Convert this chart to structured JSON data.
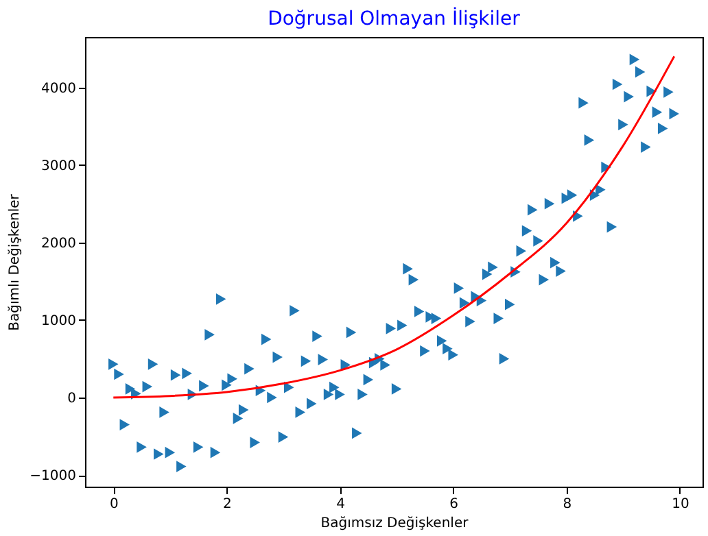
{
  "chart_data": {
    "type": "scatter",
    "title": "Doğrusal Olmayan İlişkiler",
    "xlabel": "Bağımsız Değişkenler",
    "ylabel": "Bağımlı Değişkenler",
    "xlim": [
      -0.5,
      10.4
    ],
    "ylim": [
      -1150,
      4650
    ],
    "xticks": [
      0,
      2,
      4,
      6,
      8,
      10
    ],
    "yticks": [
      -1000,
      0,
      1000,
      2000,
      3000,
      4000
    ],
    "grid": false,
    "series": [
      {
        "color": "#1f77b4",
        "marker": "triangle",
        "x": [
          0,
          0.1,
          0.2,
          0.3,
          0.4,
          0.5,
          0.6,
          0.7,
          0.8,
          0.9,
          1.0,
          1.1,
          1.2,
          1.3,
          1.4,
          1.5,
          1.6,
          1.7,
          1.8,
          1.9,
          2.0,
          2.1,
          2.2,
          2.3,
          2.4,
          2.5,
          2.6,
          2.7,
          2.8,
          2.9,
          3.0,
          3.1,
          3.2,
          3.3,
          3.4,
          3.5,
          3.6,
          3.7,
          3.8,
          3.9,
          4.0,
          4.1,
          4.2,
          4.3,
          4.4,
          4.5,
          4.6,
          4.7,
          4.8,
          4.9,
          5.0,
          5.1,
          5.2,
          5.3,
          5.4,
          5.5,
          5.6,
          5.7,
          5.8,
          5.9,
          6.0,
          6.1,
          6.2,
          6.3,
          6.4,
          6.5,
          6.6,
          6.7,
          6.8,
          6.9,
          7.0,
          7.1,
          7.2,
          7.3,
          7.4,
          7.5,
          7.6,
          7.7,
          7.8,
          7.9,
          8.0,
          8.1,
          8.2,
          8.3,
          8.4,
          8.5,
          8.6,
          8.7,
          8.8,
          8.9,
          9.0,
          9.1,
          9.2,
          9.3,
          9.4,
          9.5,
          9.6,
          9.7,
          9.8,
          9.9
        ],
        "values": [
          430,
          300,
          -350,
          110,
          50,
          -640,
          140,
          430,
          -730,
          -190,
          -710,
          290,
          -890,
          310,
          40,
          -640,
          150,
          810,
          -710,
          1270,
          160,
          240,
          -270,
          -160,
          370,
          -580,
          90,
          750,
          0,
          520,
          -510,
          130,
          1120,
          -190,
          470,
          -80,
          790,
          490,
          40,
          130,
          40,
          420,
          840,
          -460,
          40,
          230,
          450,
          500,
          420,
          890,
          110,
          930,
          1660,
          1520,
          1110,
          600,
          1040,
          1020,
          730,
          630,
          550,
          1410,
          1220,
          980,
          1300,
          1250,
          1590,
          1680,
          1020,
          500,
          1200,
          1620,
          1890,
          2150,
          2420,
          2020,
          1520,
          2500,
          1740,
          1630,
          2570,
          2610,
          2340,
          3800,
          3320,
          2610,
          2680,
          2970,
          2200,
          4040,
          3520,
          3880,
          4360,
          4200,
          3230,
          3950,
          3680,
          3470,
          3940,
          3660
        ]
      },
      {
        "type": "line",
        "color": "#ff0000",
        "marker": "none",
        "line_style": "solid",
        "x": [
          0,
          1,
          2,
          3,
          4,
          5,
          6,
          7,
          8,
          9,
          9.9
        ],
        "values": [
          0,
          20,
          70,
          180,
          350,
          620,
          1060,
          1600,
          2250,
          3250,
          4400
        ]
      }
    ]
  }
}
